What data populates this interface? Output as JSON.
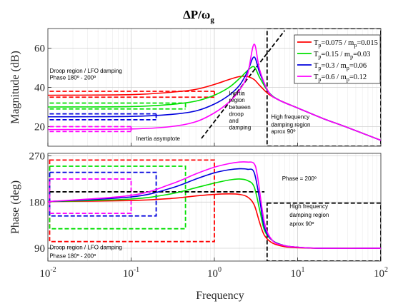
{
  "figure": {
    "title_main": "ΔP/ω",
    "title_sub": "g",
    "xlabel": "Frequency"
  },
  "chart_data": [
    {
      "type": "line",
      "title": "ΔP/ωg",
      "ylabel": "Magnitude (dB)",
      "xscale": "log",
      "xlim": [
        0.01,
        100
      ],
      "ylim": [
        10,
        70
      ],
      "x_ticks": [
        0.01,
        0.1,
        1,
        10,
        100
      ],
      "x_tick_labels": [
        {
          "base": "10",
          "exp": "-2"
        },
        {
          "base": "10",
          "exp": "-1"
        },
        {
          "base": "10",
          "exp": "0"
        },
        {
          "base": "10",
          "exp": "1"
        },
        {
          "base": "10",
          "exp": "2"
        }
      ],
      "y_ticks": [
        20,
        40,
        60
      ],
      "y_tick_labels": [
        "20",
        "40",
        "60"
      ],
      "grid": true,
      "legend_position": "top-right",
      "series": [
        {
          "name": "Tp=0.075 / mp=0.015",
          "legend": {
            "a": "T",
            "as": "p",
            "b": "=0.075  / m",
            "bs": "p",
            "c": "=0.015"
          },
          "color": "#ff0000",
          "x": [
            0.01,
            0.1,
            0.3,
            0.6,
            1,
            1.5,
            2,
            2.5,
            3,
            3.5,
            4.5,
            6,
            10,
            20,
            40,
            100
          ],
          "y": [
            36,
            36.3,
            37.5,
            39,
            41.5,
            44,
            45.5,
            45.5,
            44,
            41,
            36.5,
            33.5,
            29.5,
            24.2,
            19.5,
            13
          ]
        },
        {
          "name": "Tp=0.15 / mp=0.03",
          "legend": {
            "a": "T",
            "as": "p",
            "b": "=0.15  / m",
            "bs": "p",
            "c": "=0.03"
          },
          "color": "#00e000",
          "x": [
            0.01,
            0.1,
            0.3,
            0.6,
            1,
            1.5,
            2,
            2.5,
            3,
            3.5,
            4.5,
            6,
            10,
            20,
            40,
            100
          ],
          "y": [
            30,
            30.2,
            31.3,
            33,
            36,
            40,
            44.5,
            48.5,
            50.5,
            45,
            37.5,
            33.5,
            29.5,
            24.2,
            19.5,
            13
          ]
        },
        {
          "name": "Tp=0.3 / mp=0.06",
          "legend": {
            "a": "T",
            "as": "p",
            "b": "=0.3  / m",
            "bs": "p",
            "c": "=0.06"
          },
          "color": "#0000dd",
          "x": [
            0.01,
            0.1,
            0.3,
            0.6,
            1,
            1.5,
            2,
            2.5,
            3,
            3.5,
            4.5,
            6,
            10,
            20,
            40,
            100
          ],
          "y": [
            25,
            25.2,
            26.2,
            28,
            31.5,
            36,
            41,
            48,
            55.5,
            47.5,
            37.5,
            33.5,
            29.5,
            24.2,
            19.5,
            13
          ]
        },
        {
          "name": "Tp=0.6 / mp=0.12",
          "legend": {
            "a": "T",
            "as": "p",
            "b": "=0.6  / m",
            "bs": "p",
            "c": "=0.12"
          },
          "color": "#ff00ff",
          "x": [
            0.01,
            0.1,
            0.3,
            0.6,
            1,
            1.5,
            2,
            2.5,
            3,
            3.5,
            4.5,
            6,
            10,
            20,
            40,
            100
          ],
          "y": [
            18.5,
            18.8,
            20,
            22.5,
            27,
            32.5,
            38.5,
            46.5,
            62,
            49,
            37.5,
            33.5,
            29.5,
            24.2,
            19.5,
            13
          ]
        }
      ],
      "dashed_levels": [
        {
          "color": "#ff0000",
          "y": [
            38,
            35
          ],
          "x_end": 1
        },
        {
          "color": "#00e000",
          "y": [
            32,
            29
          ],
          "x_end": 0.45
        },
        {
          "color": "#0000dd",
          "y": [
            26.5,
            23.5
          ],
          "x_end": 0.2
        },
        {
          "color": "#ff00ff",
          "y": [
            20,
            17.5
          ],
          "x_end": 0.1
        }
      ],
      "asymptote": {
        "x": [
          0.7,
          7
        ],
        "y": [
          14,
          69
        ],
        "color": "#000000"
      },
      "hf_region": {
        "x": [
          4.3,
          100
        ],
        "y": [
          10,
          70
        ]
      },
      "annotations": [
        {
          "key": "droop1",
          "text": "Droop region / LFO damping",
          "x": 0.0105,
          "y": 47.5
        },
        {
          "key": "droop2",
          "text": "Phase 180º - 200º",
          "x": 0.0105,
          "y": 44
        },
        {
          "key": "inertia_asym",
          "text": "Inertia asymptote",
          "x": 0.115,
          "y": 13
        },
        {
          "key": "inertia_r1",
          "text": "Inertia",
          "x": 1.5,
          "y": 36
        },
        {
          "key": "inertia_r2",
          "text": "region",
          "x": 1.5,
          "y": 32.5
        },
        {
          "key": "inertia_r3",
          "text": "between",
          "x": 1.5,
          "y": 29
        },
        {
          "key": "inertia_r4",
          "text": "droop",
          "x": 1.5,
          "y": 25.5
        },
        {
          "key": "inertia_r5",
          "text": "and",
          "x": 1.5,
          "y": 22
        },
        {
          "key": "inertia_r6",
          "text": "damping",
          "x": 1.5,
          "y": 18.5
        },
        {
          "key": "hf1",
          "text": "High frequency",
          "x": 4.8,
          "y": 24
        },
        {
          "key": "hf2",
          "text": "damping region",
          "x": 4.8,
          "y": 20
        },
        {
          "key": "hf3",
          "text": "aprox 90º",
          "x": 4.8,
          "y": 16.5
        }
      ]
    },
    {
      "type": "line",
      "ylabel": "Phase (deg)",
      "xscale": "log",
      "xlim": [
        0.01,
        100
      ],
      "ylim": [
        65,
        275
      ],
      "x_ticks": [
        0.01,
        0.1,
        1,
        10,
        100
      ],
      "y_ticks": [
        90,
        180,
        270
      ],
      "y_tick_labels": [
        "90",
        "180",
        "270"
      ],
      "grid": true,
      "series": [
        {
          "name": "Tp=0.075 / mp=0.015",
          "color": "#ff0000",
          "x": [
            0.01,
            0.1,
            0.3,
            0.6,
            1,
            1.5,
            2,
            2.5,
            3,
            3.5,
            4,
            5,
            7,
            10,
            20,
            100
          ],
          "y": [
            181,
            183,
            187,
            192,
            195,
            196,
            195,
            190,
            175,
            140,
            115,
            100,
            93,
            91,
            90,
            90
          ]
        },
        {
          "name": "Tp=0.15 / mp=0.03",
          "color": "#00e000",
          "x": [
            0.01,
            0.1,
            0.3,
            0.6,
            1,
            1.5,
            2,
            2.5,
            3,
            3.5,
            4,
            5,
            7,
            10,
            20,
            100
          ],
          "y": [
            181,
            186,
            196,
            208,
            217,
            223,
            225,
            222,
            210,
            165,
            125,
            105,
            95,
            92,
            90,
            90
          ]
        },
        {
          "name": "Tp=0.3 / mp=0.06",
          "color": "#0000dd",
          "x": [
            0.01,
            0.1,
            0.3,
            0.6,
            1,
            1.5,
            2,
            2.5,
            3,
            3.5,
            4,
            5,
            7,
            10,
            20,
            100
          ],
          "y": [
            181,
            190,
            207,
            225,
            237,
            243,
            245,
            244,
            238,
            185,
            130,
            105,
            95,
            92,
            90,
            90
          ]
        },
        {
          "name": "Tp=0.6 / mp=0.12",
          "color": "#ff00ff",
          "x": [
            0.01,
            0.1,
            0.3,
            0.6,
            1,
            1.5,
            2,
            2.5,
            3,
            3.3,
            4,
            5,
            7,
            10,
            20,
            100
          ],
          "y": [
            181,
            193,
            215,
            235,
            248,
            255,
            258,
            258,
            255,
            230,
            140,
            105,
            95,
            92,
            90,
            90
          ]
        }
      ],
      "dashed_boxes": [
        {
          "color": "#ff0000",
          "x": [
            0.0105,
            1
          ],
          "y": [
            103,
            262
          ]
        },
        {
          "color": "#00e000",
          "x": [
            0.0105,
            0.45
          ],
          "y": [
            128,
            250
          ]
        },
        {
          "color": "#0000dd",
          "x": [
            0.0105,
            0.2
          ],
          "y": [
            153,
            238
          ]
        },
        {
          "color": "#ff00ff",
          "x": [
            0.0105,
            0.1
          ],
          "y": [
            158,
            225
          ]
        }
      ],
      "phase_line": {
        "y": 200,
        "x": [
          0.0105,
          4
        ]
      },
      "hf_region": {
        "x": [
          4.3,
          100
        ],
        "y": [
          65,
          178
        ]
      },
      "annotations": [
        {
          "key": "phase200",
          "text": "Phase = 200º",
          "x": 6.5,
          "y": 222
        },
        {
          "key": "hf1",
          "text": "High frequency",
          "x": 8,
          "y": 168
        },
        {
          "key": "hf2",
          "text": "damping region",
          "x": 8,
          "y": 151
        },
        {
          "key": "hf3",
          "text": "aprox 90º",
          "x": 8,
          "y": 134
        },
        {
          "key": "droop1",
          "text": "Droop region / LFO damping",
          "x": 0.0105,
          "y": 88
        },
        {
          "key": "droop2",
          "text": "Phase 180º - 200º",
          "x": 0.0105,
          "y": 71
        }
      ]
    }
  ]
}
